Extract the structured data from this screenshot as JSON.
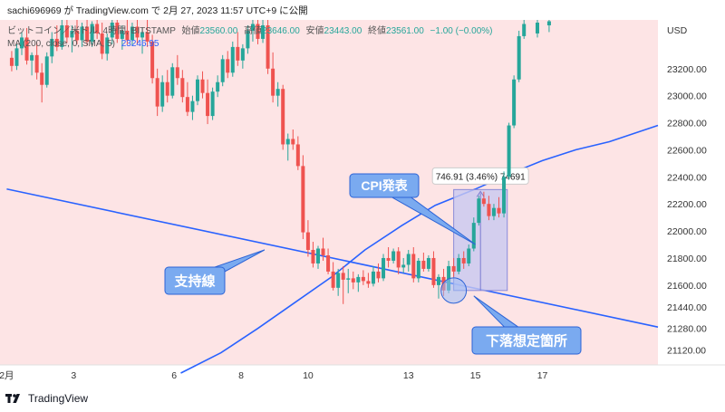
{
  "header": {
    "attribution": "sachi696969 が TradingView.com で 2月 27, 2023 11:57 UTC+9 に公開",
    "symbol": "ビットコイン／米ドル, 4時間, BITSTAMP",
    "open_label": "始値",
    "open_value": "23560.00",
    "high_label": "高値",
    "high_value": "23646.00",
    "low_label": "安値",
    "low_value": "23443.00",
    "close_label": "終値",
    "close_value": "23561.00",
    "change": "−1.00 (−0.00%)",
    "ma_label": "MA (200, close, 0, SMA, 5)",
    "ma_value": "23246.95"
  },
  "footer": {
    "brand": "TradingView"
  },
  "colors": {
    "background": "#fde4e5",
    "up": "#26a69a",
    "down": "#ef5350",
    "line": "#2962ff",
    "callout": "#7aaaf0",
    "callout_border": "#2c63d6",
    "measure": "#c8c8f0",
    "axis_bg": "#ffffff"
  },
  "chart_data": {
    "type": "candlestick",
    "currency": "USD",
    "y_ticks": [
      23200,
      23000,
      22800,
      22600,
      22400,
      22200,
      22000,
      21800,
      21600,
      21440,
      21280,
      21120
    ],
    "y_tick_labels": [
      "23200.00",
      "23000.00",
      "22800.00",
      "22600.00",
      "22400.00",
      "22200.00",
      "22000.00",
      "21800.00",
      "21600.00",
      "21440.00",
      "21280.00",
      "21120.00"
    ],
    "ylim": [
      21010,
      23560
    ],
    "x_ticks": [
      {
        "label": "2月",
        "day": 1
      },
      {
        "label": "3",
        "day": 3
      },
      {
        "label": "6",
        "day": 6
      },
      {
        "label": "8",
        "day": 8
      },
      {
        "label": "10",
        "day": 10
      },
      {
        "label": "13",
        "day": 13
      },
      {
        "label": "15",
        "day": 15
      },
      {
        "label": "17",
        "day": 17
      }
    ],
    "xlim": [
      0.8,
      20.45
    ],
    "candles": [
      [
        1.15,
        23280,
        23330,
        23180,
        23220
      ],
      [
        1.3,
        23220,
        23380,
        23190,
        23350
      ],
      [
        1.45,
        23350,
        23470,
        23300,
        23430
      ],
      [
        1.6,
        23430,
        23500,
        23230,
        23260
      ],
      [
        1.75,
        23260,
        23320,
        23150,
        23300
      ],
      [
        1.9,
        23300,
        23390,
        23120,
        23170
      ],
      [
        2.05,
        23170,
        23240,
        22950,
        23080
      ],
      [
        2.2,
        23080,
        23320,
        23060,
        23290
      ],
      [
        2.35,
        23290,
        23470,
        23240,
        23420
      ],
      [
        2.5,
        23420,
        23520,
        23330,
        23360
      ],
      [
        2.65,
        23360,
        23560,
        23340,
        23520
      ],
      [
        2.8,
        23520,
        23560,
        23390,
        23430
      ],
      [
        2.95,
        23430,
        23520,
        23320,
        23480
      ],
      [
        3.1,
        23480,
        23560,
        23380,
        23410
      ],
      [
        3.25,
        23410,
        23540,
        23360,
        23510
      ],
      [
        3.4,
        23510,
        23560,
        23370,
        23400
      ],
      [
        3.55,
        23400,
        23550,
        23360,
        23530
      ],
      [
        3.7,
        23530,
        23560,
        23420,
        23460
      ],
      [
        3.85,
        23460,
        23540,
        23270,
        23310
      ],
      [
        4.0,
        23310,
        23460,
        23260,
        23430
      ],
      [
        4.15,
        23430,
        23560,
        23380,
        23540
      ],
      [
        4.3,
        23540,
        23560,
        23390,
        23420
      ],
      [
        4.45,
        23420,
        23520,
        23340,
        23480
      ],
      [
        4.6,
        23480,
        23560,
        23380,
        23410
      ],
      [
        4.75,
        23410,
        23540,
        23370,
        23510
      ],
      [
        4.9,
        23510,
        23560,
        23380,
        23430
      ],
      [
        5.05,
        23430,
        23500,
        23310,
        23470
      ],
      [
        5.2,
        23470,
        23560,
        23360,
        23400
      ],
      [
        5.35,
        23400,
        23450,
        23090,
        23130
      ],
      [
        5.5,
        23130,
        23200,
        22850,
        22920
      ],
      [
        5.65,
        22920,
        23150,
        22880,
        23100
      ],
      [
        5.8,
        23100,
        23190,
        22950,
        23000
      ],
      [
        5.95,
        23000,
        23240,
        22980,
        23210
      ],
      [
        6.1,
        23210,
        23300,
        23080,
        23130
      ],
      [
        6.25,
        23130,
        23190,
        22950,
        22990
      ],
      [
        6.4,
        22990,
        23100,
        22850,
        22880
      ],
      [
        6.55,
        22880,
        23000,
        22820,
        22960
      ],
      [
        6.7,
        22960,
        23150,
        22930,
        23120
      ],
      [
        6.85,
        23120,
        23180,
        22980,
        23020
      ],
      [
        7.0,
        23020,
        23120,
        22790,
        22850
      ],
      [
        7.15,
        22850,
        23060,
        22820,
        23030
      ],
      [
        7.3,
        23030,
        23150,
        22990,
        23100
      ],
      [
        7.45,
        23100,
        23300,
        23070,
        23270
      ],
      [
        7.6,
        23270,
        23330,
        23130,
        23170
      ],
      [
        7.75,
        23170,
        23400,
        23140,
        23360
      ],
      [
        7.9,
        23360,
        23470,
        23220,
        23260
      ],
      [
        8.05,
        23260,
        23380,
        23200,
        23350
      ],
      [
        8.2,
        23350,
        23520,
        23310,
        23480
      ],
      [
        8.35,
        23480,
        23560,
        23400,
        23530
      ],
      [
        8.5,
        23530,
        23560,
        23380,
        23420
      ],
      [
        8.65,
        23420,
        23560,
        23390,
        23520
      ],
      [
        8.8,
        23520,
        23560,
        23160,
        23200
      ],
      [
        8.95,
        23200,
        23320,
        22950,
        23000
      ],
      [
        9.1,
        23000,
        23100,
        22920,
        23050
      ],
      [
        9.25,
        23050,
        23080,
        22600,
        22640
      ],
      [
        9.4,
        22640,
        22720,
        22520,
        22680
      ],
      [
        9.55,
        22680,
        22750,
        22600,
        22640
      ],
      [
        9.7,
        22640,
        22700,
        22450,
        22480
      ],
      [
        9.85,
        22480,
        22560,
        21940,
        21990
      ],
      [
        10.0,
        21990,
        22080,
        21810,
        21860
      ],
      [
        10.15,
        21860,
        21920,
        21730,
        21760
      ],
      [
        10.3,
        21760,
        21890,
        21720,
        21870
      ],
      [
        10.45,
        21870,
        21950,
        21780,
        21820
      ],
      [
        10.6,
        21820,
        21870,
        21680,
        21700
      ],
      [
        10.75,
        21700,
        21770,
        21560,
        21580
      ],
      [
        10.9,
        21580,
        21720,
        21520,
        21690
      ],
      [
        11.05,
        21690,
        21740,
        21460,
        21640
      ],
      [
        11.2,
        21640,
        21720,
        21540,
        21650
      ],
      [
        11.35,
        21650,
        21700,
        21570,
        21620
      ],
      [
        11.5,
        21620,
        21680,
        21550,
        21660
      ],
      [
        11.65,
        21660,
        21710,
        21600,
        21630
      ],
      [
        11.8,
        21630,
        21690,
        21580,
        21610
      ],
      [
        11.95,
        21610,
        21740,
        21590,
        21700
      ],
      [
        12.1,
        21700,
        21760,
        21620,
        21650
      ],
      [
        12.25,
        21650,
        21830,
        21630,
        21800
      ],
      [
        12.4,
        21800,
        21880,
        21730,
        21780
      ],
      [
        12.55,
        21780,
        21870,
        21760,
        21850
      ],
      [
        12.7,
        21850,
        21880,
        21680,
        21730
      ],
      [
        12.85,
        21730,
        21800,
        21690,
        21750
      ],
      [
        13.0,
        21750,
        21860,
        21700,
        21830
      ],
      [
        13.15,
        21830,
        21880,
        21620,
        21650
      ],
      [
        13.3,
        21650,
        21800,
        21620,
        21780
      ],
      [
        13.45,
        21780,
        21840,
        21700,
        21720
      ],
      [
        13.6,
        21720,
        21820,
        21700,
        21800
      ],
      [
        13.75,
        21800,
        21850,
        21580,
        21600
      ],
      [
        13.9,
        21600,
        21680,
        21500,
        21660
      ],
      [
        14.05,
        21660,
        21720,
        21520,
        21560
      ],
      [
        14.2,
        21560,
        21780,
        21540,
        21740
      ],
      [
        14.35,
        21740,
        21800,
        21660,
        21700
      ],
      [
        14.5,
        21700,
        21830,
        21680,
        21800
      ],
      [
        14.65,
        21800,
        21850,
        21720,
        21760
      ],
      [
        14.8,
        21760,
        21900,
        21740,
        21870
      ],
      [
        14.95,
        21870,
        22100,
        21850,
        22060
      ],
      [
        15.1,
        22060,
        22260,
        22040,
        22240
      ],
      [
        15.25,
        22240,
        22290,
        22180,
        22200
      ],
      [
        15.4,
        22200,
        22260,
        22080,
        22110
      ],
      [
        15.55,
        22110,
        22200,
        22080,
        22170
      ],
      [
        15.7,
        22170,
        22250,
        22100,
        22130
      ],
      [
        15.85,
        22130,
        22440,
        22100,
        22400
      ],
      [
        16.0,
        22400,
        22800,
        22380,
        22780
      ],
      [
        16.15,
        22780,
        23150,
        22760,
        23120
      ],
      [
        16.3,
        23120,
        23480,
        23100,
        23440
      ],
      [
        16.45,
        23440,
        23560,
        23420,
        23530
      ],
      [
        16.85,
        23460,
        23560,
        23430,
        23540
      ],
      [
        17.2,
        23520,
        23560,
        23470,
        23550
      ]
    ],
    "ma_series": {
      "name": "MA (200, close, 0, SMA, 5)",
      "points": [
        [
          6.2,
          20950
        ],
        [
          7.4,
          21100
        ],
        [
          8.5,
          21280
        ],
        [
          9.6,
          21470
        ],
        [
          10.7,
          21660
        ],
        [
          11.7,
          21860
        ],
        [
          12.8,
          22040
        ],
        [
          13.8,
          22190
        ],
        [
          15.0,
          22310
        ],
        [
          16.0,
          22420
        ],
        [
          17.0,
          22520
        ],
        [
          18.0,
          22600
        ],
        [
          19.0,
          22660
        ],
        [
          20.45,
          22780
        ]
      ]
    },
    "support_line": {
      "label": "支持線",
      "points": [
        [
          1.0,
          22310
        ],
        [
          20.45,
          21290
        ]
      ]
    },
    "measure": {
      "label": "746.91 (3.46%) 74691",
      "from": {
        "day": 14.35,
        "price": 21560
      },
      "to": {
        "day": 15.95,
        "price": 22306
      }
    },
    "annotations": [
      {
        "text": "CPI発表",
        "point": [
          15.0,
          21900
        ]
      },
      {
        "text": "支持線",
        "point": [
          8.7,
          21860
        ]
      },
      {
        "text": "下落想定箇所",
        "point": [
          14.95,
          21520
        ]
      }
    ]
  }
}
